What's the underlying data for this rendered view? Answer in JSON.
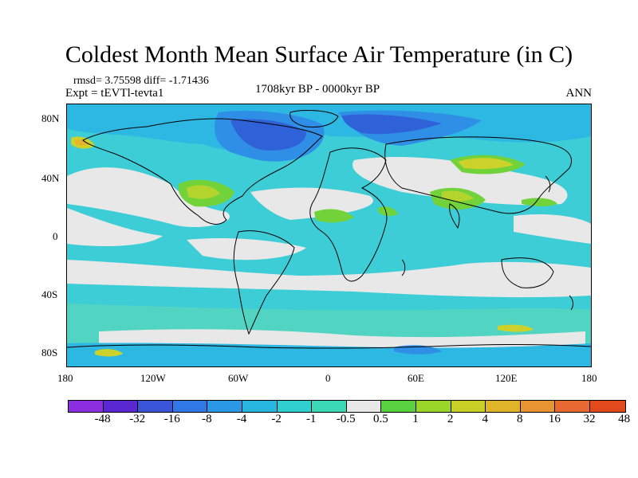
{
  "title": "Coldest Month Mean Surface Air Temperature (in C)",
  "stats": "rmsd= 3.75598 diff= -1.71436",
  "experiment": "Expt = tEVTl-tevta1",
  "period": "1708kyr BP - 0000kyr BP",
  "season": "ANN",
  "axes": {
    "lat_ticks": [
      "80N",
      "40N",
      "0",
      "40S",
      "80S"
    ],
    "lon_ticks": [
      "180",
      "120W",
      "60W",
      "0",
      "60E",
      "120E",
      "180"
    ]
  },
  "colorbar": {
    "labels": [
      "-48",
      "-32",
      "-16",
      "-8",
      "-4",
      "-2",
      "-1",
      "-0.5",
      "0.5",
      "1",
      "2",
      "4",
      "8",
      "16",
      "32",
      "48"
    ],
    "colors": [
      "#8c2ee0",
      "#5a28d0",
      "#3a55d8",
      "#2f78e6",
      "#2b98e6",
      "#27b6e0",
      "#2fcfcf",
      "#3ad8b4",
      "#e8e8e8",
      "#58d040",
      "#9ad62a",
      "#c8d026",
      "#e0b428",
      "#e89432",
      "#e86a30",
      "#e24a1e"
    ]
  },
  "palette": {
    "neutral": "#e8e8e8",
    "light_teal": "#52d4c2",
    "teal": "#3ccdd6",
    "cyan": "#2db7e3",
    "blue": "#2f8fe6",
    "dark_blue": "#2f62d8",
    "green": "#72d23a",
    "yellow_green": "#b2d42c",
    "yellow": "#ccd22a",
    "orange": "#e6b42c"
  }
}
